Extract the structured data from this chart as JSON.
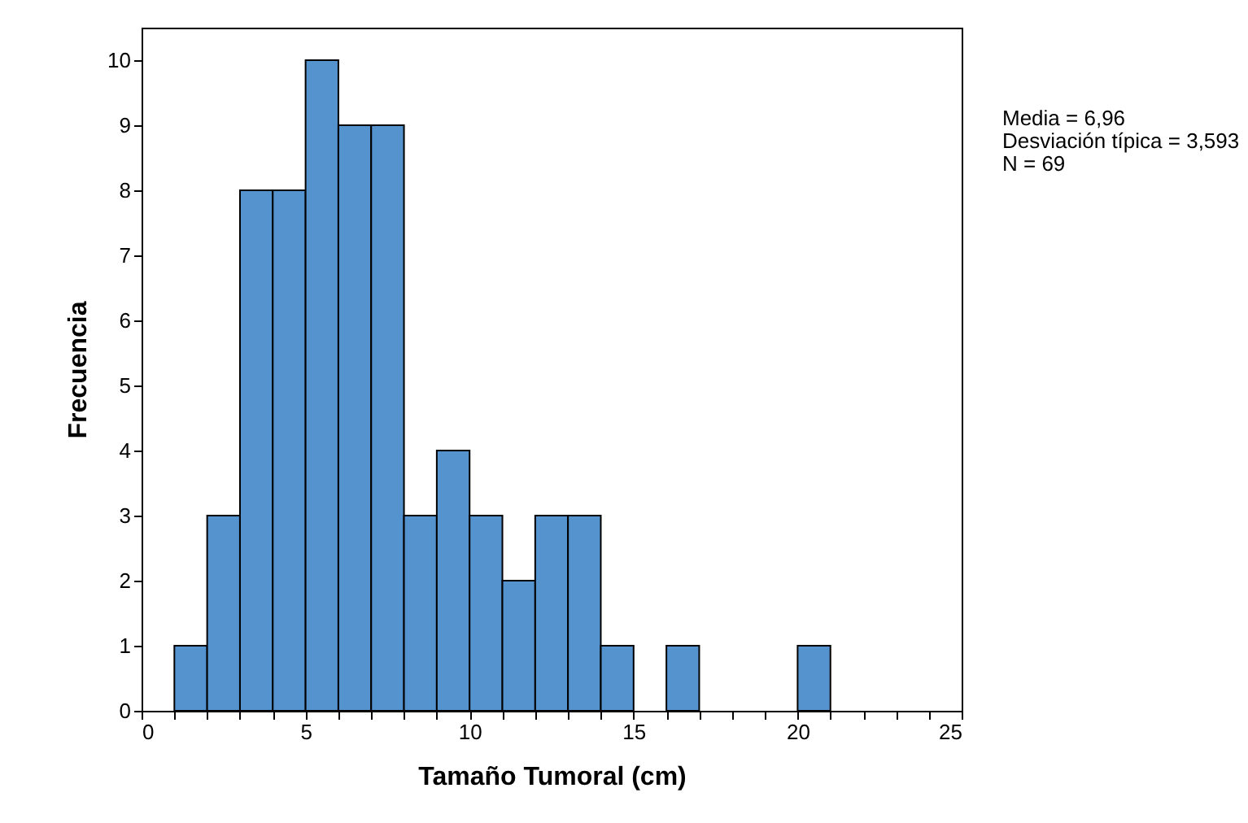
{
  "chart_data": {
    "type": "histogram",
    "xlabel": "Tamaño Tumoral (cm)",
    "ylabel": "Frecuencia",
    "bins": [
      0,
      1,
      2,
      3,
      4,
      5,
      6,
      7,
      8,
      9,
      10,
      11,
      12,
      13,
      14,
      15,
      16,
      17,
      18,
      19,
      20,
      21,
      22,
      23,
      24,
      25
    ],
    "values": [
      0,
      1,
      3,
      8,
      8,
      10,
      9,
      9,
      3,
      4,
      3,
      2,
      3,
      3,
      1,
      0,
      1,
      0,
      0,
      0,
      1,
      0,
      0,
      0,
      0
    ],
    "color": "#5593cf",
    "xlim": [
      0,
      25
    ],
    "ylim": [
      0,
      10.5
    ],
    "xticks": [
      0,
      {
        "value": 1,
        "label": null
      },
      {
        "value": 2,
        "label": null
      },
      {
        "value": 3,
        "label": null
      },
      {
        "value": 4,
        "label": null
      },
      5,
      {
        "value": 6,
        "label": null
      },
      {
        "value": 7,
        "label": null
      },
      {
        "value": 8,
        "label": null
      },
      {
        "value": 9,
        "label": null
      },
      10,
      {
        "value": 11,
        "label": null
      },
      {
        "value": 12,
        "label": null
      },
      {
        "value": 13,
        "label": null
      },
      {
        "value": 14,
        "label": null
      },
      15,
      {
        "value": 16,
        "label": null
      },
      {
        "value": 17,
        "label": null
      },
      {
        "value": 18,
        "label": null
      },
      {
        "value": 19,
        "label": null
      },
      20,
      {
        "value": 21,
        "label": null
      },
      {
        "value": 22,
        "label": null
      },
      {
        "value": 23,
        "label": null
      },
      {
        "value": 24,
        "label": null
      },
      25
    ],
    "yticks": [
      0,
      1,
      2,
      3,
      4,
      5,
      6,
      7,
      8,
      9,
      10
    ],
    "annotations": [
      "Media = 6,96",
      "Desviación típica = 3,593",
      "N = 69"
    ],
    "grid": false
  }
}
